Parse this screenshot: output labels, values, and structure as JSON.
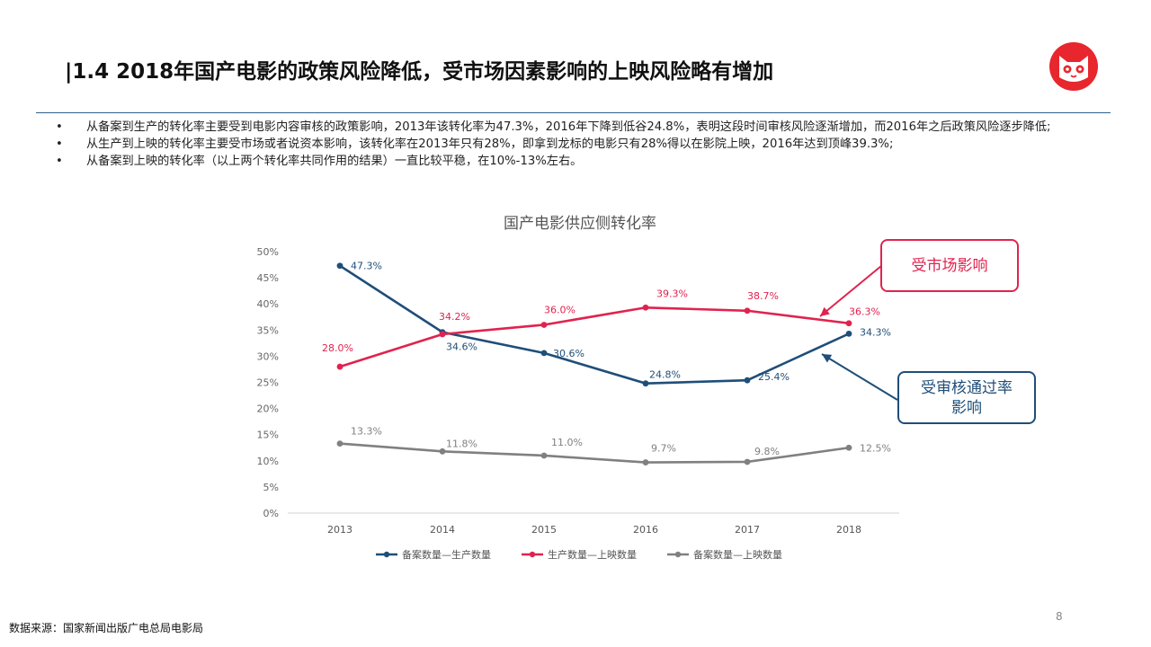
{
  "slide": {
    "title": "|1.4 2018年国产电影的政策风险降低，受市场因素影响的上映风险略有增加",
    "bullets": [
      "从备案到生产的转化率主要受到电影内容审核的政策影响，2013年该转化率为47.3%，2016年下降到低谷24.8%，表明这段时间审核风险逐渐增加，而2016年之后政策风险逐步降低;",
      "从生产到上映的转化率主要受市场或者说资本影响，该转化率在2013年只有28%，即拿到龙标的电影只有28%得以在影院上映，2016年达到顶峰39.3%;",
      "从备案到上映的转化率（以上两个转化率共同作用的结果）一直比较平稳，在10%-13%左右。"
    ],
    "bullet_symbol": "•",
    "source": "数据来源：国家新闻出版广电总局电影局",
    "page_number": "8",
    "logo_icon": "cat-face-logo-icon",
    "callouts": {
      "market": "受市场影响",
      "review": "受审核通过率\n影响"
    },
    "colors": {
      "title_rule": "#2f5f8a",
      "market": "#e0234e",
      "review": "#1f4e79",
      "logo": "#e8262d"
    }
  },
  "chart_data": {
    "type": "line",
    "title": "国产电影供应侧转化率",
    "categories": [
      "2013",
      "2014",
      "2015",
      "2016",
      "2017",
      "2018"
    ],
    "yticks": [
      "0%",
      "5%",
      "10%",
      "15%",
      "20%",
      "25%",
      "30%",
      "35%",
      "40%",
      "45%",
      "50%"
    ],
    "ylim": [
      0,
      50
    ],
    "series": [
      {
        "name": "备案数量—生产数量",
        "color": "#1f4e79",
        "values": [
          47.3,
          34.6,
          30.6,
          24.8,
          25.4,
          34.3
        ],
        "labels": [
          "47.3%",
          "34.6%",
          "30.6%",
          "24.8%",
          "25.4%",
          "34.3%"
        ]
      },
      {
        "name": "生产数量—上映数量",
        "color": "#e0234e",
        "values": [
          28.0,
          34.2,
          36.0,
          39.3,
          38.7,
          36.3
        ],
        "labels": [
          "28.0%",
          "34.2%",
          "36.0%",
          "39.3%",
          "38.7%",
          "36.3%"
        ]
      },
      {
        "name": "备案数量—上映数量",
        "color": "#808080",
        "values": [
          13.3,
          11.8,
          11.0,
          9.7,
          9.8,
          12.5
        ],
        "labels": [
          "13.3%",
          "11.8%",
          "11.0%",
          "9.7%",
          "9.8%",
          "12.5%"
        ]
      }
    ],
    "legend_position": "bottom-center"
  }
}
